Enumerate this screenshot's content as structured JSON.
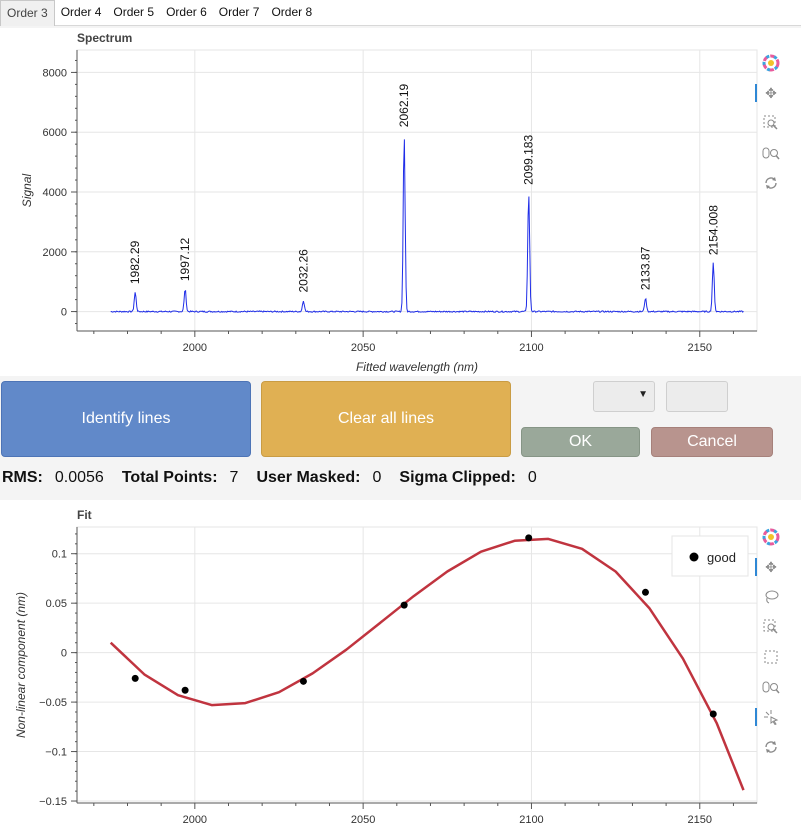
{
  "tabs": [
    "Order 3",
    "Order 4",
    "Order 5",
    "Order 6",
    "Order 7",
    "Order 8"
  ],
  "buttons": {
    "identify": "Identify lines",
    "clear": "Clear all lines",
    "ok": "OK",
    "cancel": "Cancel",
    "dropdown_arrow": "▼"
  },
  "stats": {
    "rms_label": "RMS:",
    "rms_value": "0.0056",
    "total_label": "Total Points:",
    "total_value": "7",
    "masked_label": "User Masked:",
    "masked_value": "0",
    "clipped_label": "Sigma Clipped:",
    "clipped_value": "0"
  },
  "toolbar_icons": {
    "spectrum": [
      "bokeh-logo-icon",
      "pan-icon",
      "box-zoom-icon",
      "wheel-zoom-icon",
      "reset-icon"
    ],
    "fit": [
      "bokeh-logo-icon",
      "pan-icon",
      "lasso-select-icon",
      "box-zoom-icon",
      "box-select-icon",
      "wheel-zoom-icon",
      "tap-icon",
      "reset-icon"
    ]
  },
  "colors": {
    "spectrum_line": "#1f2de8",
    "fit_curve": "#c0343f",
    "points": "#000000",
    "identify_button": "#6189c9",
    "clear_button": "#e0b053",
    "ok_button": "#9aa89a",
    "cancel_button": "#b8948e"
  },
  "chart_data": [
    {
      "type": "line",
      "title": "Spectrum",
      "xlabel": "Fitted wavelength (nm)",
      "ylabel": "Signal",
      "xlim": [
        1965,
        2167
      ],
      "ylim": [
        -650,
        8750
      ],
      "x_ticks": [
        2000,
        2050,
        2100,
        2150
      ],
      "y_ticks": [
        0,
        2000,
        4000,
        6000,
        8000
      ],
      "x_range": [
        1975,
        2163
      ],
      "noise_sigma": 22,
      "grid": true,
      "peaks": [
        {
          "x": 1982.29,
          "label": "1982.29",
          "height": 650
        },
        {
          "x": 1997.12,
          "label": "1997.12",
          "height": 750
        },
        {
          "x": 2032.26,
          "label": "2032.26",
          "height": 370
        },
        {
          "x": 2062.19,
          "label": "2062.19",
          "height": 5900
        },
        {
          "x": 2099.183,
          "label": "2099.183",
          "height": 3970
        },
        {
          "x": 2133.87,
          "label": "2133.87",
          "height": 450
        },
        {
          "x": 2154.008,
          "label": "2154.008",
          "height": 1620
        }
      ]
    },
    {
      "type": "scatter",
      "title": "Fit",
      "xlabel": "",
      "ylabel": "Non-linear component (nm)",
      "xlim": [
        1965,
        2167
      ],
      "ylim": [
        -0.152,
        0.127
      ],
      "x_ticks": [
        2000,
        2050,
        2100,
        2150
      ],
      "y_ticks": [
        -0.15,
        -0.1,
        -0.05,
        0,
        0.05,
        0.1
      ],
      "grid": true,
      "legend": {
        "position": "top-right",
        "entries": [
          "good"
        ]
      },
      "points": [
        {
          "x": 1982.29,
          "y": -0.026
        },
        {
          "x": 1997.12,
          "y": -0.038
        },
        {
          "x": 2032.26,
          "y": -0.029
        },
        {
          "x": 2062.19,
          "y": 0.048
        },
        {
          "x": 2099.183,
          "y": 0.116
        },
        {
          "x": 2133.87,
          "y": 0.061
        },
        {
          "x": 2154.008,
          "y": -0.062
        }
      ],
      "curve": [
        {
          "x": 1975,
          "y": 0.01
        },
        {
          "x": 1985,
          "y": -0.022
        },
        {
          "x": 1995,
          "y": -0.043
        },
        {
          "x": 2005,
          "y": -0.053
        },
        {
          "x": 2015,
          "y": -0.051
        },
        {
          "x": 2025,
          "y": -0.04
        },
        {
          "x": 2035,
          "y": -0.021
        },
        {
          "x": 2045,
          "y": 0.003
        },
        {
          "x": 2055,
          "y": 0.03
        },
        {
          "x": 2065,
          "y": 0.057
        },
        {
          "x": 2075,
          "y": 0.082
        },
        {
          "x": 2085,
          "y": 0.102
        },
        {
          "x": 2095,
          "y": 0.113
        },
        {
          "x": 2105,
          "y": 0.115
        },
        {
          "x": 2115,
          "y": 0.105
        },
        {
          "x": 2125,
          "y": 0.082
        },
        {
          "x": 2135,
          "y": 0.045
        },
        {
          "x": 2145,
          "y": -0.006
        },
        {
          "x": 2155,
          "y": -0.071
        },
        {
          "x": 2163,
          "y": -0.139
        }
      ]
    }
  ]
}
